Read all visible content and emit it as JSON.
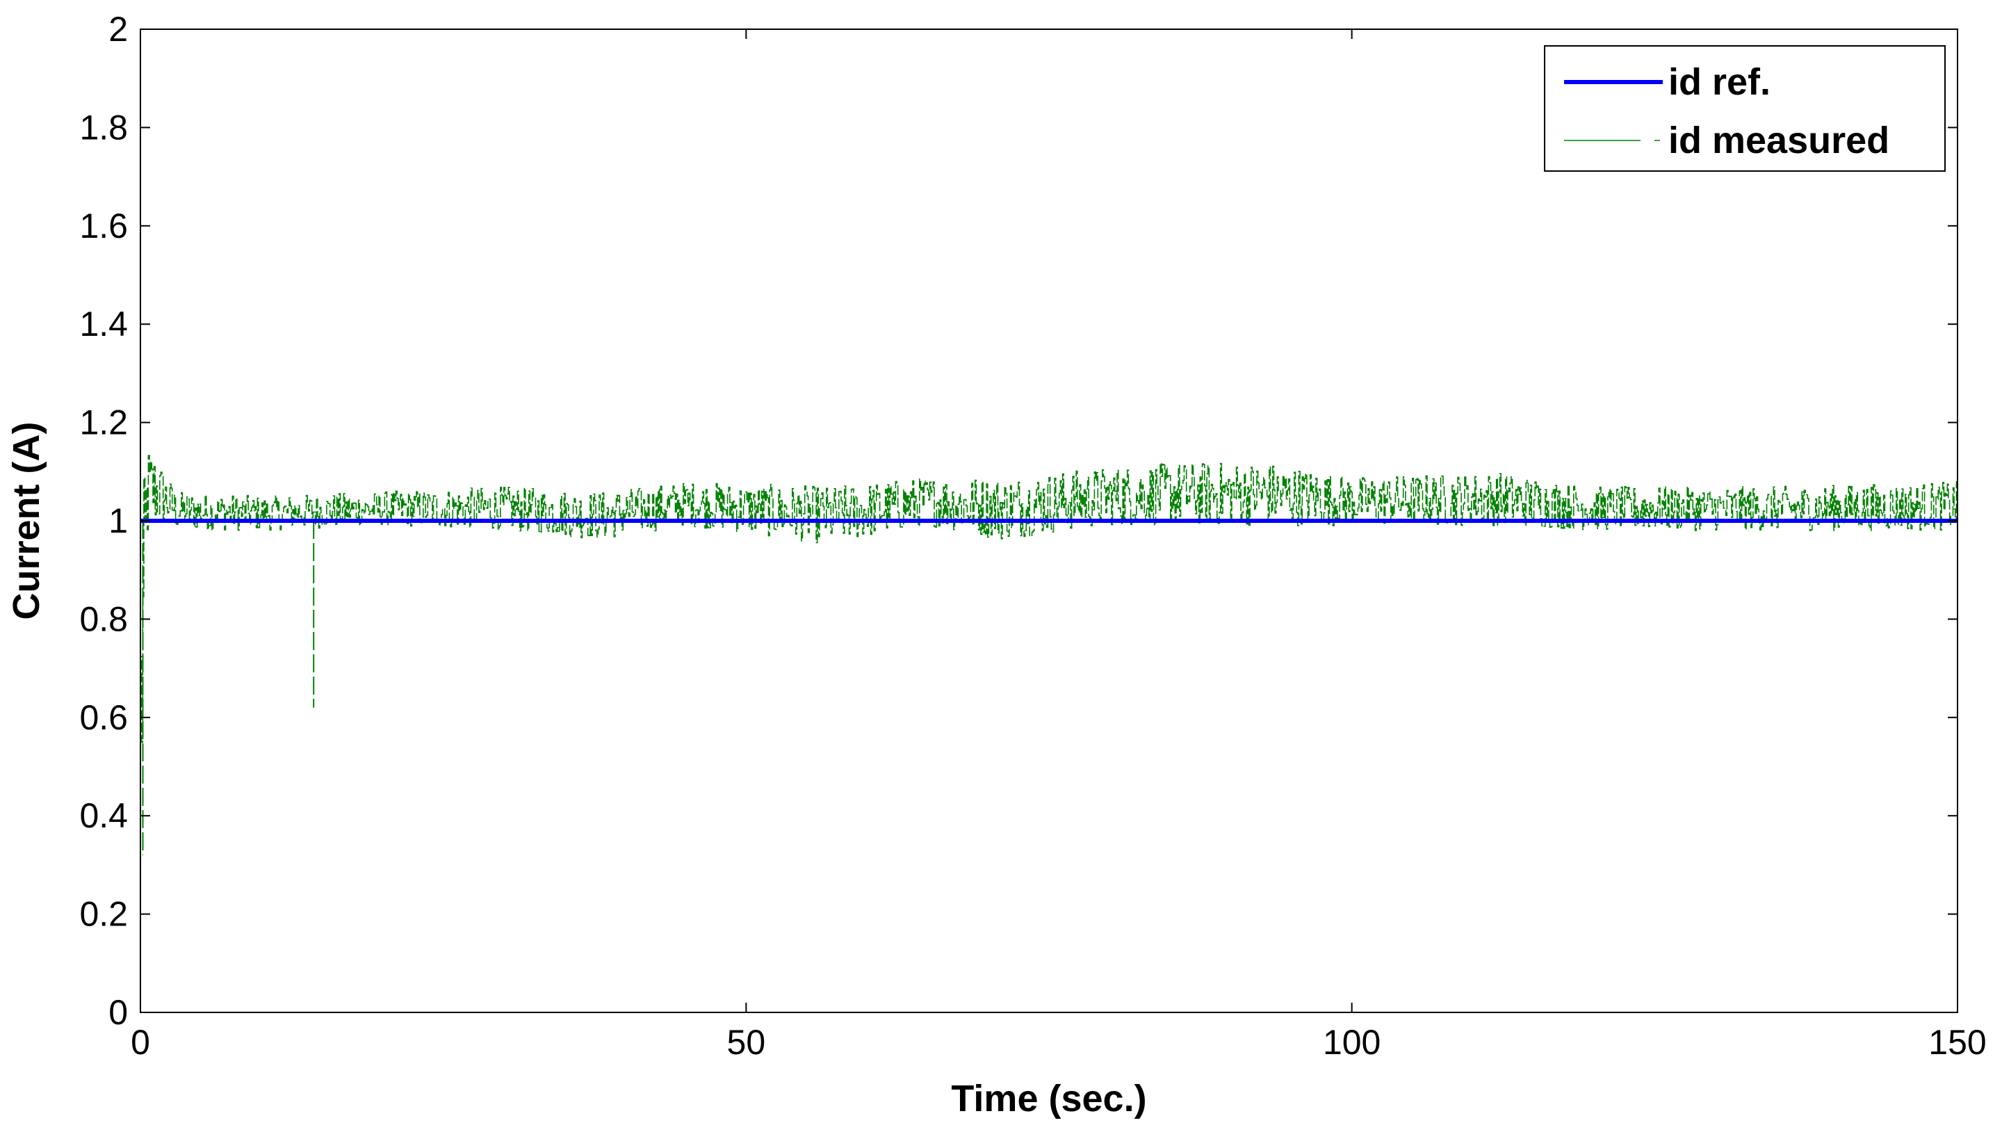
{
  "chart_data": {
    "type": "line",
    "title": "",
    "xlabel": "Time (sec.)",
    "ylabel": "Current (A)",
    "xlim": [
      0,
      150
    ],
    "ylim": [
      0,
      2
    ],
    "xticks": [
      0,
      50,
      100,
      150
    ],
    "yticks": [
      0,
      0.2,
      0.4,
      0.6,
      0.8,
      1,
      1.2,
      1.4,
      1.6,
      1.8,
      2
    ],
    "ytick_labels": [
      "0",
      "0.2",
      "0.4",
      "0.6",
      "0.8",
      "1",
      "1.2",
      "1.4",
      "1.6",
      "1.8",
      "2"
    ],
    "xtick_labels": [
      "0",
      "50",
      "100",
      "150"
    ],
    "grid": false,
    "legend_position": "top-right",
    "series": [
      {
        "name": "id ref.",
        "color": "#0000ff",
        "style": "solid",
        "x": [
          0,
          150
        ],
        "y": [
          1,
          1
        ]
      },
      {
        "name": "id measured",
        "color": "#008000",
        "style": "dashed",
        "noise_band": [
          {
            "x": 0,
            "low": 0.2,
            "high": 1.0
          },
          {
            "x": 0.5,
            "low": 0.94,
            "high": 1.16
          },
          {
            "x": 1,
            "low": 0.98,
            "high": 1.15
          },
          {
            "x": 2,
            "low": 0.99,
            "high": 1.1
          },
          {
            "x": 3,
            "low": 0.98,
            "high": 1.06
          },
          {
            "x": 10,
            "low": 0.98,
            "high": 1.05
          },
          {
            "x": 20,
            "low": 0.99,
            "high": 1.06
          },
          {
            "x": 30,
            "low": 0.98,
            "high": 1.07
          },
          {
            "x": 38,
            "low": 0.96,
            "high": 1.06
          },
          {
            "x": 45,
            "low": 0.99,
            "high": 1.08
          },
          {
            "x": 57,
            "low": 0.95,
            "high": 1.07
          },
          {
            "x": 65,
            "low": 0.99,
            "high": 1.09
          },
          {
            "x": 71,
            "low": 0.96,
            "high": 1.09
          },
          {
            "x": 80,
            "low": 0.99,
            "high": 1.11
          },
          {
            "x": 85,
            "low": 0.99,
            "high": 1.12
          },
          {
            "x": 93,
            "low": 0.99,
            "high": 1.12
          },
          {
            "x": 100,
            "low": 0.99,
            "high": 1.09
          },
          {
            "x": 112,
            "low": 0.99,
            "high": 1.1
          },
          {
            "x": 120,
            "low": 0.98,
            "high": 1.07
          },
          {
            "x": 135,
            "low": 0.98,
            "high": 1.07
          },
          {
            "x": 150,
            "low": 0.98,
            "high": 1.08
          }
        ],
        "spikes": [
          {
            "x": 14.3,
            "y": 0.62
          },
          {
            "x": 0.2,
            "y": 0.32
          }
        ]
      }
    ]
  }
}
